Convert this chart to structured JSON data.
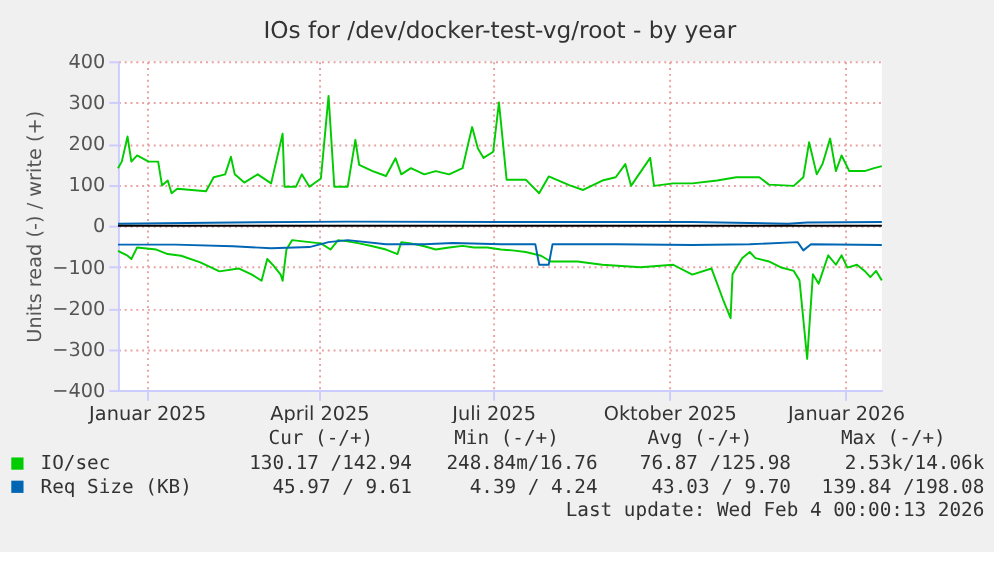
{
  "chart_data": {
    "type": "line",
    "title": "IOs for /dev/docker-test-vg/root - by year",
    "ylabel": "Units read (-) / write (+)",
    "xlim": [
      "2025-01-01",
      "2026-02-04"
    ],
    "xticks": [
      {
        "value": "2025-01-16",
        "label": "Januar 2025"
      },
      {
        "value": "2025-04-16",
        "label": "April 2025"
      },
      {
        "value": "2025-07-16",
        "label": "Juli 2025"
      },
      {
        "value": "2025-10-16",
        "label": "Oktober 2025"
      },
      {
        "value": "2026-01-16",
        "label": "Januar 2026"
      }
    ],
    "ylim": [
      -400,
      400
    ],
    "yticks": [
      -400,
      -300,
      -200,
      -100,
      0,
      100,
      200,
      300,
      400
    ],
    "grid": true,
    "legend": "bottom left",
    "line_style": "solid",
    "marker": "none",
    "ref_lines": [
      {
        "axis": "y",
        "value": 0,
        "color": "#000000"
      }
    ],
    "series": [
      {
        "name": "IO/sec",
        "color": "#00cc00",
        "x": [
          "2025-01-01",
          "2025-01-03",
          "2025-01-06",
          "2025-01-08",
          "2025-01-11",
          "2025-01-17",
          "2025-01-22",
          "2025-01-24",
          "2025-01-27",
          "2025-01-29",
          "2025-02-01",
          "2025-02-16",
          "2025-02-20",
          "2025-02-26",
          "2025-03-01",
          "2025-03-03",
          "2025-03-08",
          "2025-03-15",
          "2025-03-22",
          "2025-03-28",
          "2025-03-29",
          "2025-04-04",
          "2025-04-07",
          "2025-04-11",
          "2025-04-17",
          "2025-04-21",
          "2025-04-24",
          "2025-05-01",
          "2025-05-05",
          "2025-05-07",
          "2025-05-14",
          "2025-05-21",
          "2025-05-26",
          "2025-05-29",
          "2025-06-03",
          "2025-06-10",
          "2025-06-16",
          "2025-06-23",
          "2025-06-30",
          "2025-07-03",
          "2025-07-05",
          "2025-07-08",
          "2025-07-11",
          "2025-07-16",
          "2025-07-19",
          "2025-07-23",
          "2025-08-02",
          "2025-08-09",
          "2025-08-14",
          "2025-08-25",
          "2025-09-01",
          "2025-09-11",
          "2025-09-18",
          "2025-09-23",
          "2025-09-26",
          "2025-10-06",
          "2025-10-08",
          "2025-10-18",
          "2025-10-28",
          "2025-11-10",
          "2025-11-20",
          "2025-12-02",
          "2025-12-07",
          "2025-12-20",
          "2025-12-25",
          "2025-12-28",
          "2026-01-01",
          "2026-01-04",
          "2026-01-08",
          "2026-01-11",
          "2026-01-14",
          "2026-01-18",
          "2026-01-26",
          "2026-01-31",
          "2026-02-04"
        ],
        "values": [
          140,
          156,
          217,
          156,
          171,
          156,
          156,
          98,
          110,
          79,
          90,
          84,
          118,
          125,
          168,
          125,
          105,
          125,
          103,
          224,
          95,
          95,
          125,
          95,
          115,
          316,
          95,
          95,
          209,
          148,
          133,
          121,
          164,
          125,
          140,
          125,
          133,
          125,
          140,
          201,
          240,
          188,
          165,
          180,
          300,
          112,
          112,
          79,
          120,
          98,
          87,
          110,
          118,
          150,
          97,
          165,
          97,
          103,
          103,
          110,
          118,
          118,
          100,
          97,
          118,
          203,
          125,
          150,
          212,
          133,
          171,
          133,
          133,
          140,
          145
        ]
      },
      {
        "color": "#00cc00",
        "x": [
          "2025-01-01",
          "2025-01-06",
          "2025-01-08",
          "2025-01-11",
          "2025-01-21",
          "2025-01-27",
          "2025-02-03",
          "2025-02-13",
          "2025-02-23",
          "2025-03-05",
          "2025-03-12",
          "2025-03-17",
          "2025-03-20",
          "2025-03-23",
          "2025-03-27",
          "2025-03-28",
          "2025-03-30",
          "2025-04-02",
          "2025-04-11",
          "2025-04-17",
          "2025-04-22",
          "2025-04-26",
          "2025-05-01",
          "2025-05-07",
          "2025-05-14",
          "2025-05-21",
          "2025-05-27",
          "2025-05-29",
          "2025-06-03",
          "2025-06-10",
          "2025-06-16",
          "2025-06-23",
          "2025-06-30",
          "2025-07-06",
          "2025-07-13",
          "2025-07-20",
          "2025-07-26",
          "2025-08-02",
          "2025-08-10",
          "2025-08-15",
          "2025-08-29",
          "2025-09-11",
          "2025-10-01",
          "2025-10-18",
          "2025-10-28",
          "2025-11-07",
          "2025-11-13",
          "2025-11-17",
          "2025-11-18",
          "2025-11-23",
          "2025-11-27",
          "2025-11-30",
          "2025-12-07",
          "2025-12-13",
          "2025-12-20",
          "2025-12-23",
          "2025-12-27",
          "2025-12-30",
          "2026-01-02",
          "2026-01-07",
          "2026-01-11",
          "2026-01-14",
          "2026-01-17",
          "2026-01-22",
          "2026-01-26",
          "2026-01-29",
          "2026-02-01",
          "2026-02-04"
        ],
        "values": [
          -61,
          -73,
          -81,
          -53,
          -58,
          -69,
          -73,
          -89,
          -111,
          -104,
          -119,
          -134,
          -81,
          -96,
          -119,
          -134,
          -58,
          -35,
          -40,
          -43,
          -58,
          -35,
          -38,
          -43,
          -50,
          -58,
          -69,
          -40,
          -43,
          -50,
          -58,
          -53,
          -49,
          -53,
          -53,
          -58,
          -60,
          -64,
          -73,
          -87,
          -87,
          -95,
          -101,
          -95,
          -119,
          -104,
          -179,
          -225,
          -118,
          -79,
          -64,
          -79,
          -87,
          -101,
          -110,
          -133,
          -324,
          -118,
          -141,
          -72,
          -95,
          -72,
          -102,
          -95,
          -110,
          -125,
          -110,
          -133
        ]
      },
      {
        "name": "Req Size (KB)",
        "color": "#0066b3",
        "x": [
          "2025-01-01",
          "2025-03-02",
          "2025-05-01",
          "2025-07-20",
          "2025-10-28",
          "2025-12-17",
          "2025-12-27",
          "2026-02-04"
        ],
        "values": [
          5,
          8,
          10,
          9,
          9,
          5,
          8,
          9
        ]
      },
      {
        "color": "#0066b3",
        "x": [
          "2025-01-01",
          "2025-01-31",
          "2025-03-02",
          "2025-03-22",
          "2025-04-11",
          "2025-04-21",
          "2025-05-01",
          "2025-05-21",
          "2025-06-10",
          "2025-06-25",
          "2025-07-20",
          "2025-08-07",
          "2025-08-09",
          "2025-08-14",
          "2025-08-16",
          "2025-09-18",
          "2025-10-28",
          "2025-11-27",
          "2025-12-22",
          "2025-12-25",
          "2025-12-29",
          "2026-02-04"
        ],
        "values": [
          -46,
          -46,
          -50,
          -55,
          -52,
          -40,
          -35,
          -45,
          -45,
          -42,
          -45,
          -45,
          -95,
          -95,
          -45,
          -45,
          -47,
          -45,
          -40,
          -60,
          -45,
          -47
        ]
      }
    ],
    "annotations": [
      "Cur (-/+)",
      "Min (-/+)",
      "Avg (-/+)",
      "Max (-/+)",
      "130.17 /142.94",
      "248.84m/16.76",
      "76.87 /125.98",
      "2.53k/14.06k",
      "45.97 / 9.61",
      "4.39 / 4.24",
      "43.03 / 9.70",
      "139.84 /198.08",
      "Last update: Wed Feb  4 00:00:13 2026"
    ]
  }
}
